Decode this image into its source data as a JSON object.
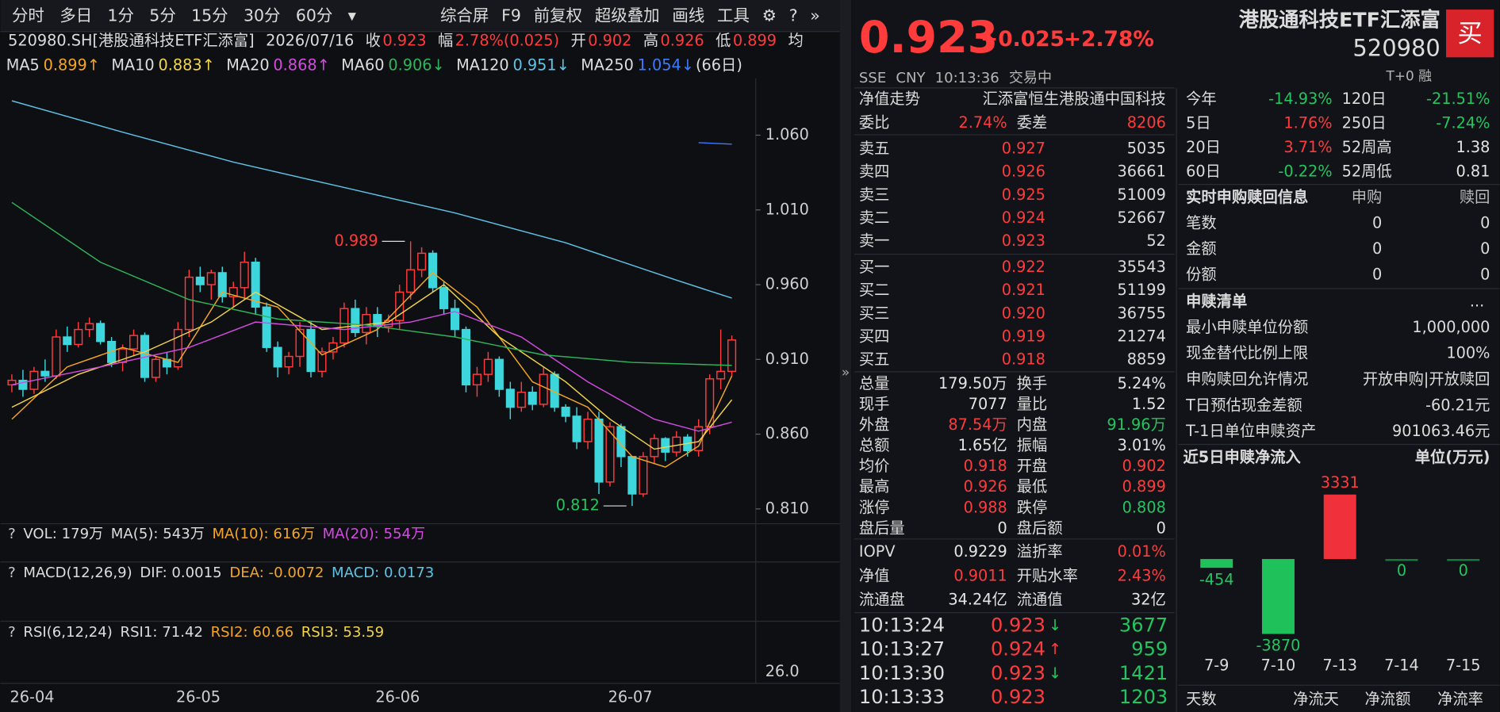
{
  "toolbar": {
    "left": [
      "分时",
      "多日",
      "1分",
      "5分",
      "15分",
      "30分",
      "60分",
      "▾"
    ],
    "right": [
      "综合屏",
      "F9",
      "前复权",
      "超级叠加",
      "画线",
      "工具",
      "⚙",
      "?",
      "»"
    ]
  },
  "info": {
    "symbol": "520980.SH[港股通科技ETF汇添富]",
    "date": "2026/07/16",
    "fields": [
      [
        "收",
        "0.923"
      ],
      [
        "幅",
        "2.78%(0.025)"
      ],
      [
        "开",
        "0.902"
      ],
      [
        "高",
        "0.926"
      ],
      [
        "低",
        "0.899"
      ]
    ],
    "avg": "均",
    "period": "(66日)"
  },
  "chart_data": [
    {
      "type": "candlestick",
      "open": [
        0.893,
        0.896,
        0.89,
        0.902,
        0.899,
        0.925,
        0.92,
        0.93,
        0.934,
        0.922,
        0.908,
        0.917,
        0.926,
        0.898,
        0.91,
        0.905,
        0.93,
        0.965,
        0.96,
        0.968,
        0.952,
        0.958,
        0.975,
        0.945,
        0.918,
        0.905,
        0.912,
        0.93,
        0.902,
        0.915,
        0.921,
        0.944,
        0.928,
        0.94,
        0.932,
        0.936,
        0.955,
        0.97,
        0.981,
        0.958,
        0.944,
        0.93,
        0.893,
        0.9,
        0.91,
        0.89,
        0.878,
        0.888,
        0.88,
        0.9,
        0.878,
        0.872,
        0.855,
        0.87,
        0.828,
        0.865,
        0.845,
        0.82,
        0.845,
        0.857,
        0.848,
        0.858,
        0.849,
        0.865,
        0.897,
        0.902
      ],
      "high": [
        0.9,
        0.903,
        0.905,
        0.91,
        0.93,
        0.932,
        0.935,
        0.938,
        0.936,
        0.925,
        0.92,
        0.93,
        0.928,
        0.912,
        0.915,
        0.935,
        0.97,
        0.972,
        0.97,
        0.972,
        0.962,
        0.982,
        0.978,
        0.948,
        0.922,
        0.915,
        0.935,
        0.935,
        0.918,
        0.925,
        0.948,
        0.95,
        0.945,
        0.945,
        0.94,
        0.96,
        0.989,
        0.985,
        0.983,
        0.962,
        0.95,
        0.932,
        0.905,
        0.915,
        0.912,
        0.895,
        0.895,
        0.892,
        0.905,
        0.902,
        0.88,
        0.878,
        0.875,
        0.875,
        0.868,
        0.867,
        0.845,
        0.848,
        0.86,
        0.858,
        0.862,
        0.86,
        0.87,
        0.9,
        0.93,
        0.926
      ],
      "low": [
        0.888,
        0.885,
        0.887,
        0.895,
        0.897,
        0.915,
        0.918,
        0.925,
        0.92,
        0.905,
        0.902,
        0.912,
        0.895,
        0.895,
        0.9,
        0.903,
        0.925,
        0.955,
        0.95,
        0.948,
        0.945,
        0.95,
        0.94,
        0.915,
        0.898,
        0.9,
        0.905,
        0.898,
        0.898,
        0.91,
        0.918,
        0.925,
        0.92,
        0.925,
        0.928,
        0.93,
        0.95,
        0.965,
        0.955,
        0.94,
        0.925,
        0.888,
        0.885,
        0.895,
        0.885,
        0.87,
        0.875,
        0.876,
        0.878,
        0.875,
        0.868,
        0.85,
        0.85,
        0.82,
        0.825,
        0.838,
        0.812,
        0.818,
        0.84,
        0.842,
        0.845,
        0.845,
        0.845,
        0.86,
        0.89,
        0.899
      ],
      "close": [
        0.896,
        0.89,
        0.902,
        0.899,
        0.925,
        0.92,
        0.93,
        0.934,
        0.922,
        0.908,
        0.917,
        0.926,
        0.898,
        0.91,
        0.905,
        0.93,
        0.965,
        0.96,
        0.968,
        0.952,
        0.958,
        0.975,
        0.945,
        0.918,
        0.905,
        0.912,
        0.93,
        0.902,
        0.915,
        0.921,
        0.944,
        0.928,
        0.94,
        0.932,
        0.936,
        0.955,
        0.97,
        0.981,
        0.958,
        0.944,
        0.93,
        0.893,
        0.9,
        0.91,
        0.89,
        0.878,
        0.888,
        0.88,
        0.9,
        0.878,
        0.872,
        0.855,
        0.87,
        0.828,
        0.865,
        0.845,
        0.82,
        0.845,
        0.857,
        0.848,
        0.858,
        0.849,
        0.865,
        0.897,
        0.902,
        0.923
      ],
      "up_color": "#ff3b3b",
      "down_color": "#3cd6dc",
      "series": [
        {
          "name": "MA5",
          "label": "0.899↑",
          "color": "#f5a623",
          "x": [
            0,
            5,
            10,
            15,
            19,
            24,
            28,
            33,
            38,
            42,
            47,
            52,
            56,
            59,
            62,
            65
          ],
          "values": [
            0.87,
            0.905,
            0.918,
            0.908,
            0.955,
            0.945,
            0.913,
            0.93,
            0.968,
            0.945,
            0.895,
            0.878,
            0.845,
            0.838,
            0.852,
            0.899
          ]
        },
        {
          "name": "MA10",
          "label": "0.883↑",
          "color": "#f2d649",
          "x": [
            0,
            6,
            12,
            18,
            22,
            28,
            34,
            39,
            44,
            50,
            54,
            58,
            62,
            65
          ],
          "values": [
            0.878,
            0.9,
            0.915,
            0.935,
            0.955,
            0.93,
            0.935,
            0.96,
            0.925,
            0.895,
            0.87,
            0.85,
            0.855,
            0.883
          ]
        },
        {
          "name": "MA20",
          "label": "0.868↑",
          "color": "#d34be0",
          "x": [
            0,
            8,
            16,
            22,
            30,
            36,
            40,
            46,
            52,
            58,
            62,
            65
          ],
          "values": [
            0.893,
            0.905,
            0.918,
            0.935,
            0.93,
            0.935,
            0.942,
            0.925,
            0.895,
            0.87,
            0.862,
            0.868
          ]
        },
        {
          "name": "MA60",
          "label": "0.906↓",
          "color": "#2fb55a",
          "x": [
            0,
            8,
            16,
            24,
            32,
            40,
            48,
            56,
            65
          ],
          "values": [
            1.015,
            0.975,
            0.95,
            0.937,
            0.933,
            0.925,
            0.913,
            0.908,
            0.906
          ]
        },
        {
          "name": "MA120",
          "label": "0.951↓",
          "color": "#5fc3e6",
          "x": [
            0,
            10,
            20,
            30,
            40,
            50,
            60,
            65
          ],
          "values": [
            1.083,
            1.062,
            1.042,
            1.025,
            1.008,
            0.988,
            0.963,
            0.951
          ]
        },
        {
          "name": "MA250",
          "label": "1.054↓",
          "color": "#3c7bff",
          "x": [
            62,
            65
          ],
          "values": [
            1.055,
            1.054
          ]
        }
      ],
      "ylim": [
        0.802,
        1.098
      ],
      "yticks": [
        {
          "value": 1.06,
          "label": "1.060"
        },
        {
          "value": 1.01,
          "label": "1.010"
        },
        {
          "value": 0.96,
          "label": "0.960"
        },
        {
          "value": 0.91,
          "label": "0.910"
        },
        {
          "value": 0.86,
          "label": "0.860"
        },
        {
          "value": 0.81,
          "label": "0.810"
        }
      ],
      "xticks": [
        {
          "value": 0,
          "label": "26-04"
        },
        {
          "value": 15,
          "label": "26-05"
        },
        {
          "value": 33,
          "label": "26-06"
        },
        {
          "value": 54,
          "label": "26-07"
        }
      ],
      "annotations": [
        {
          "value": 0.989,
          "label": "0.989"
        },
        {
          "value": 0.812,
          "label": "0.812"
        }
      ]
    },
    {
      "type": "bar",
      "title": "近5日申赎净流入",
      "unit": "单位(万元)",
      "categories": [
        "7-9",
        "7-10",
        "7-13",
        "7-14",
        "7-15"
      ],
      "values": [
        -454,
        -3870,
        3331,
        0,
        0
      ],
      "ylim": [
        -4200,
        3700
      ],
      "positive_color": "#f0303a",
      "negative_color": "#1fc15a"
    }
  ],
  "panels": [
    {
      "items": [
        "?",
        "VOL: 179万",
        "MA(5): 543万",
        "MA(10): 616万",
        "MA(20): 554万"
      ],
      "colors": [
        "#ccc",
        "#ddd",
        "#ddd",
        "#f5a623",
        "#d34be0"
      ]
    },
    {
      "items": [
        "?",
        "MACD(12,26,9)",
        "DIF: 0.0015",
        "DEA: -0.0072",
        "MACD: 0.0173"
      ],
      "colors": [
        "#ccc",
        "#ddd",
        "#ddd",
        "#f5a623",
        "#5fc3e6"
      ]
    },
    {
      "items": [
        "?",
        "RSI(6,12,24)",
        "RSI1: 71.42",
        "RSI2: 60.66",
        "RSI3: 53.59"
      ],
      "colors": [
        "#ccc",
        "#ddd",
        "#ddd",
        "#f5a623",
        "#f2d649"
      ],
      "axis": "26.0"
    }
  ],
  "quote": {
    "price": "0.923",
    "change": "+0.025",
    "pct": "+2.78%",
    "meta": [
      "SSE",
      "CNY",
      "10:13:36",
      "交易中"
    ],
    "name": "港股通科技ETF汇添富",
    "code": "520980",
    "tags": "T+0 融",
    "buy": "买"
  },
  "book": {
    "header": [
      "净值走势",
      "汇添富恒生港股通中国科技"
    ],
    "ratio": [
      "委比",
      "2.74%",
      "委差",
      "8206"
    ],
    "asks": [
      [
        "卖五",
        "0.927",
        "5035"
      ],
      [
        "卖四",
        "0.926",
        "36661"
      ],
      [
        "卖三",
        "0.925",
        "51009"
      ],
      [
        "卖二",
        "0.924",
        "52667"
      ],
      [
        "卖一",
        "0.923",
        "52"
      ]
    ],
    "bids": [
      [
        "买一",
        "0.922",
        "35543"
      ],
      [
        "买二",
        "0.921",
        "51199"
      ],
      [
        "买三",
        "0.920",
        "36755"
      ],
      [
        "买四",
        "0.919",
        "21274"
      ],
      [
        "买五",
        "0.918",
        "8859"
      ]
    ],
    "stats": [
      [
        "总量",
        "179.50万",
        "换手",
        "5.24%"
      ],
      [
        "现手",
        "7077",
        "量比",
        "1.52"
      ],
      [
        "外盘",
        "87.54万",
        "内盘",
        "91.96万"
      ],
      [
        "总额",
        "1.65亿",
        "振幅",
        "3.01%"
      ],
      [
        "均价",
        "0.918",
        "开盘",
        "0.902"
      ],
      [
        "最高",
        "0.926",
        "最低",
        "0.899"
      ],
      [
        "涨停",
        "0.988",
        "跌停",
        "0.808"
      ],
      [
        "盘后量",
        "0",
        "盘后额",
        "0"
      ]
    ],
    "etf": [
      [
        "IOPV",
        "0.9229",
        "溢折率",
        "0.01%"
      ],
      [
        "净值",
        "0.9011",
        "开贴水率",
        "2.43%"
      ],
      [
        "流通盘",
        "34.24亿",
        "流通值",
        "32亿"
      ]
    ],
    "trades": [
      [
        "10:13:24",
        "0.923",
        "↓",
        "3677"
      ],
      [
        "10:13:27",
        "0.924",
        "↑",
        "959"
      ],
      [
        "10:13:30",
        "0.923",
        "↓",
        "1421"
      ],
      [
        "10:13:33",
        "0.923",
        "1203"
      ]
    ]
  },
  "perf": [
    [
      "今年",
      "-14.93%",
      "120日",
      "-21.51%"
    ],
    [
      "5日",
      "1.76%",
      "250日",
      "-7.24%"
    ],
    [
      "20日",
      "3.71%",
      "52周高",
      "1.38"
    ],
    [
      "60日",
      "-0.22%",
      "52周低",
      "0.81"
    ]
  ],
  "subscription": {
    "title": "实时申购赎回信息",
    "cols": [
      "申购",
      "赎回"
    ],
    "rows": [
      [
        "笔数",
        "0",
        "0"
      ],
      [
        "金额",
        "0",
        "0"
      ],
      [
        "份额",
        "0",
        "0"
      ]
    ]
  },
  "list": {
    "title": "申赎清单",
    "more": "...",
    "rows": [
      [
        "最小申赎单位份额",
        "1,000,000"
      ],
      [
        "现金替代比例上限",
        "100%"
      ],
      [
        "申购赎回允许情况",
        "开放申购|开放赎回"
      ],
      [
        "T日预估现金差额",
        "-60.21元"
      ],
      [
        "T-1日单位申赎资产",
        "901063.46元"
      ]
    ]
  },
  "tabs": [
    "天数",
    "净流天",
    "净流额",
    "净流率"
  ]
}
